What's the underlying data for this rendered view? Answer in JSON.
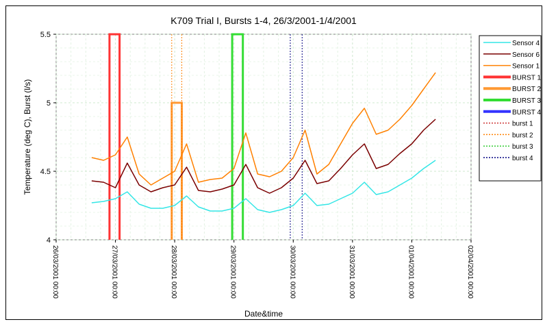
{
  "chart_data": {
    "type": "line",
    "title": "K709 Trial I, Bursts 1-4, 26/3/2001-1/4/2001",
    "xlabel": "Date&time",
    "ylabel": "Temperature (deg C), Burst (l/s)",
    "ylim": [
      4,
      5.5
    ],
    "y_ticks": [
      4,
      4.5,
      5,
      5.5
    ],
    "y_tick_labels": [
      "4",
      "4.5",
      "5",
      "5.5"
    ],
    "xlim_days": [
      26,
      33
    ],
    "x_tick_labels": [
      "26/03/2001 00:00",
      "27/03/2001 00:00",
      "28/03/2001 00:00",
      "29/03/2001 00:00",
      "30/03/2001 00:00",
      "31/03/2001 00:00",
      "01/04/2001 00:00",
      "02/04/2001 00:00"
    ],
    "grid": true,
    "legend_position": "right",
    "series": [
      {
        "name": "Sensor 4",
        "color": "#33e6e6",
        "style": "solid",
        "x": [
          26.6,
          26.8,
          27.0,
          27.2,
          27.4,
          27.6,
          27.8,
          28.0,
          28.2,
          28.4,
          28.6,
          28.8,
          29.0,
          29.2,
          29.4,
          29.6,
          29.8,
          30.0,
          30.2,
          30.4,
          30.6,
          30.8,
          31.0,
          31.2,
          31.4,
          31.6,
          31.8,
          32.0,
          32.2,
          32.4
        ],
        "y": [
          4.27,
          4.28,
          4.3,
          4.35,
          4.26,
          4.23,
          4.23,
          4.25,
          4.32,
          4.24,
          4.21,
          4.21,
          4.23,
          4.3,
          4.22,
          4.2,
          4.22,
          4.25,
          4.34,
          4.25,
          4.26,
          4.3,
          4.34,
          4.42,
          4.33,
          4.35,
          4.4,
          4.45,
          4.52,
          4.58
        ]
      },
      {
        "name": "Sensor 6",
        "color": "#7a0000",
        "style": "solid",
        "x": [
          26.6,
          26.8,
          27.0,
          27.2,
          27.4,
          27.6,
          27.8,
          28.0,
          28.2,
          28.4,
          28.6,
          28.8,
          29.0,
          29.2,
          29.4,
          29.6,
          29.8,
          30.0,
          30.2,
          30.4,
          30.6,
          30.8,
          31.0,
          31.2,
          31.4,
          31.6,
          31.8,
          32.0,
          32.2,
          32.4
        ],
        "y": [
          4.43,
          4.42,
          4.38,
          4.56,
          4.4,
          4.35,
          4.38,
          4.4,
          4.53,
          4.36,
          4.35,
          4.37,
          4.4,
          4.55,
          4.38,
          4.34,
          4.38,
          4.45,
          4.58,
          4.41,
          4.43,
          4.52,
          4.62,
          4.7,
          4.52,
          4.55,
          4.63,
          4.7,
          4.8,
          4.88
        ]
      },
      {
        "name": "Sensor 1",
        "color": "#ff8000",
        "style": "solid",
        "x": [
          26.6,
          26.8,
          27.0,
          27.2,
          27.4,
          27.6,
          27.8,
          28.0,
          28.2,
          28.4,
          28.6,
          28.8,
          29.0,
          29.2,
          29.4,
          29.6,
          29.8,
          30.0,
          30.2,
          30.4,
          30.6,
          30.8,
          31.0,
          31.2,
          31.4,
          31.6,
          31.8,
          32.0,
          32.2,
          32.4
        ],
        "y": [
          4.6,
          4.58,
          4.62,
          4.75,
          4.48,
          4.4,
          4.45,
          4.5,
          4.7,
          4.42,
          4.44,
          4.45,
          4.52,
          4.78,
          4.48,
          4.46,
          4.5,
          4.6,
          4.8,
          4.48,
          4.55,
          4.7,
          4.85,
          4.96,
          4.77,
          4.8,
          4.88,
          4.98,
          5.1,
          5.22
        ]
      }
    ],
    "bursts": [
      {
        "name": "BURST 1",
        "color": "#ff3333",
        "style": "thick",
        "x_start": 26.9,
        "x_end": 27.07,
        "level": 5.5
      },
      {
        "name": "BURST 2",
        "color": "#ff9933",
        "style": "thick",
        "x_start": 27.95,
        "x_end": 28.12,
        "level": 5.0
      },
      {
        "name": "BURST 3",
        "color": "#33dd33",
        "style": "thick",
        "x_start": 28.97,
        "x_end": 29.15,
        "level": 5.5
      },
      {
        "name": "BURST 4",
        "color": "#3333ff",
        "style": "thick",
        "x_start": null,
        "x_end": null,
        "level": null
      }
    ],
    "burst_markers": [
      {
        "name": "burst 1",
        "color": "#cc3333",
        "style": "dotted",
        "x": []
      },
      {
        "name": "burst 2",
        "color": "#ff8000",
        "style": "dotted",
        "x": [
          27.95,
          28.12
        ]
      },
      {
        "name": "burst 3",
        "color": "#33cc33",
        "style": "dotted",
        "x": []
      },
      {
        "name": "burst 4",
        "color": "#000080",
        "style": "dotted",
        "x": [
          29.95,
          30.15
        ]
      }
    ]
  }
}
